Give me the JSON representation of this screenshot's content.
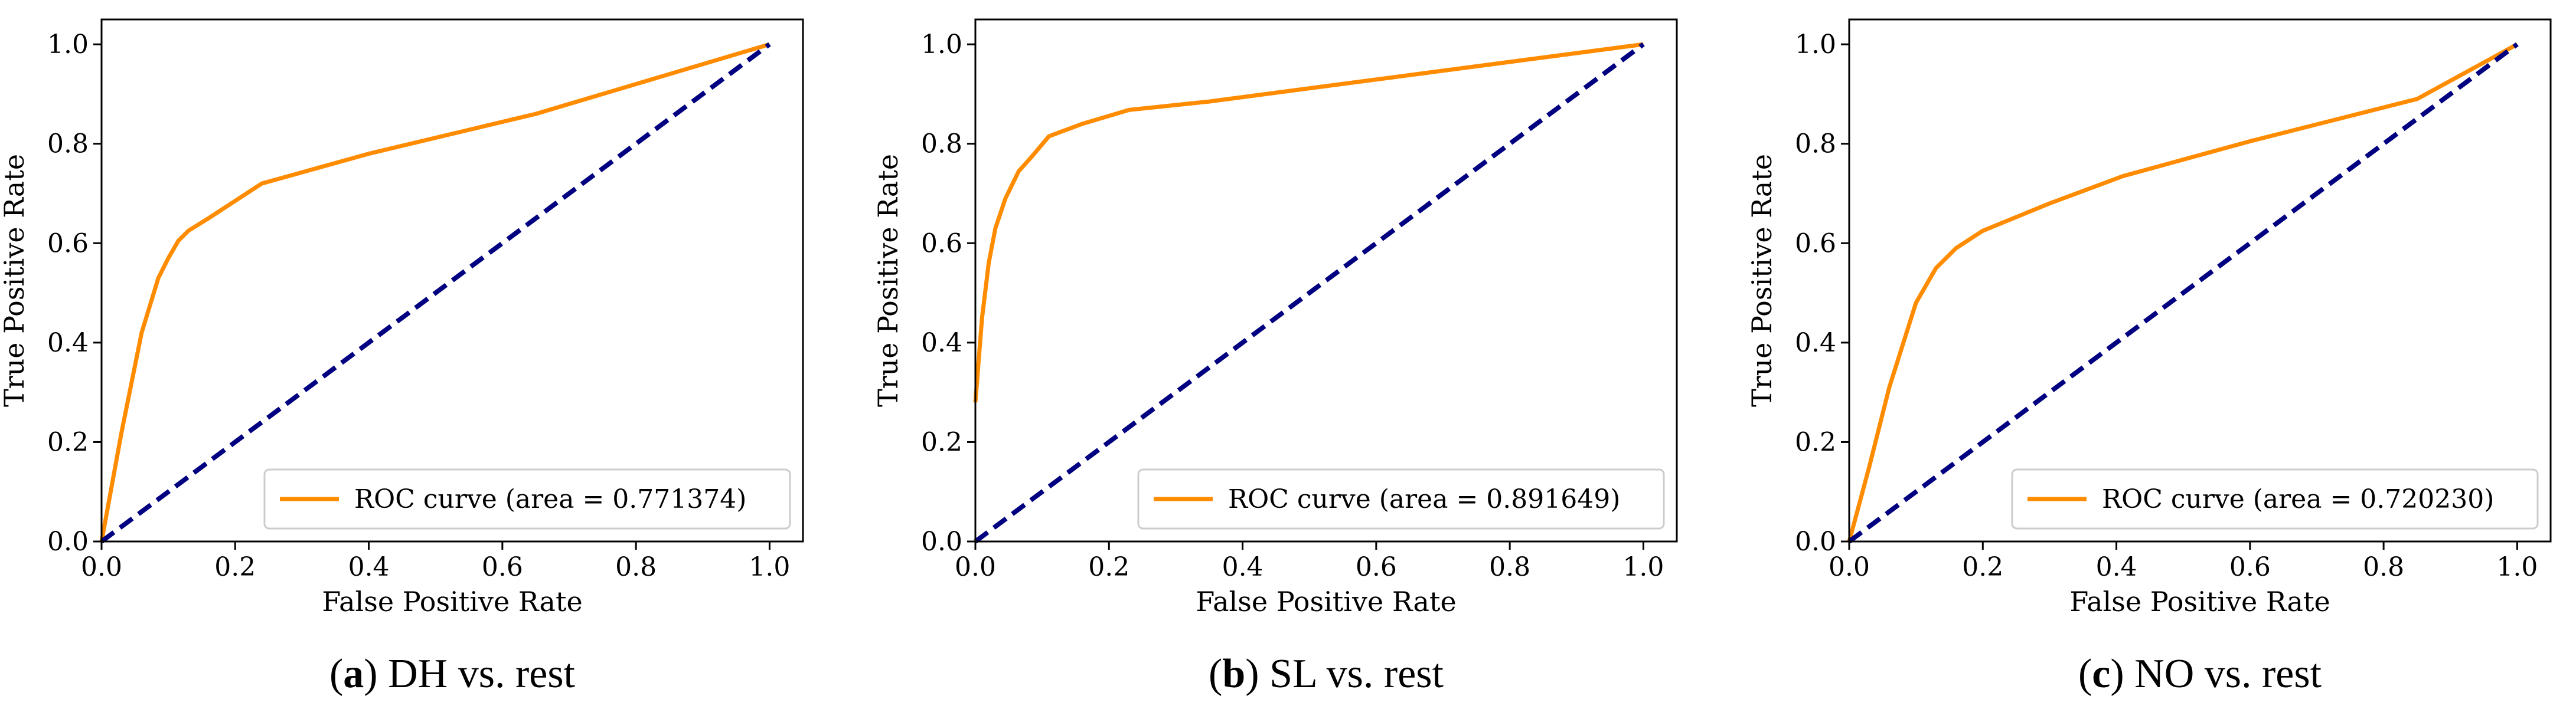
{
  "colors": {
    "roc": "#ff8c00",
    "diagonal": "#000080",
    "axes": "#000000",
    "legend_border": "#cccccc"
  },
  "chart_data": [
    {
      "type": "line",
      "caption_letter": "a",
      "caption_text": " DH vs. rest",
      "xlabel": "False Positive Rate",
      "ylabel": "True Positive Rate",
      "xlim": [
        0.0,
        1.05
      ],
      "ylim": [
        0.0,
        1.05
      ],
      "xticks": [
        "0.0",
        "0.2",
        "0.4",
        "0.6",
        "0.8",
        "1.0"
      ],
      "yticks": [
        "0.0",
        "0.2",
        "0.4",
        "0.6",
        "0.8",
        "1.0"
      ],
      "grid": false,
      "legend_position": "lower-right",
      "series": [
        {
          "name": "ROC curve (area = 0.771374)",
          "style": "solid",
          "x": [
            0.0,
            0.03,
            0.06,
            0.085,
            0.1,
            0.115,
            0.13,
            0.16,
            0.2,
            0.24,
            0.4,
            0.65,
            1.0
          ],
          "y": [
            0.0,
            0.22,
            0.42,
            0.53,
            0.57,
            0.605,
            0.625,
            0.65,
            0.685,
            0.72,
            0.78,
            0.86,
            1.0
          ]
        },
        {
          "name": "",
          "style": "dashed",
          "x": [
            0.0,
            1.0
          ],
          "y": [
            0.0,
            1.0
          ]
        }
      ]
    },
    {
      "type": "line",
      "caption_letter": "b",
      "caption_text": " SL vs. rest",
      "xlabel": "False Positive Rate",
      "ylabel": "True Positive Rate",
      "xlim": [
        0.0,
        1.05
      ],
      "ylim": [
        0.0,
        1.05
      ],
      "xticks": [
        "0.0",
        "0.2",
        "0.4",
        "0.6",
        "0.8",
        "1.0"
      ],
      "yticks": [
        "0.0",
        "0.2",
        "0.4",
        "0.6",
        "0.8",
        "1.0"
      ],
      "grid": false,
      "legend_position": "lower-right",
      "series": [
        {
          "name": "ROC curve (area = 0.891649)",
          "style": "solid",
          "x": [
            0.0,
            0.01,
            0.02,
            0.03,
            0.045,
            0.065,
            0.085,
            0.11,
            0.16,
            0.23,
            0.35,
            1.0
          ],
          "y": [
            0.28,
            0.45,
            0.56,
            0.63,
            0.69,
            0.745,
            0.775,
            0.815,
            0.84,
            0.868,
            0.885,
            1.0
          ]
        },
        {
          "name": "",
          "style": "dashed",
          "x": [
            0.0,
            1.0
          ],
          "y": [
            0.0,
            1.0
          ]
        }
      ]
    },
    {
      "type": "line",
      "caption_letter": "c",
      "caption_text": " NO vs. rest",
      "xlabel": "False Positive Rate",
      "ylabel": "True Positive Rate",
      "xlim": [
        0.0,
        1.05
      ],
      "ylim": [
        0.0,
        1.05
      ],
      "xticks": [
        "0.0",
        "0.2",
        "0.4",
        "0.6",
        "0.8",
        "1.0"
      ],
      "yticks": [
        "0.0",
        "0.2",
        "0.4",
        "0.6",
        "0.8",
        "1.0"
      ],
      "grid": false,
      "legend_position": "lower-right",
      "series": [
        {
          "name": "ROC curve (area = 0.720230)",
          "style": "solid",
          "x": [
            0.0,
            0.03,
            0.06,
            0.1,
            0.13,
            0.16,
            0.2,
            0.3,
            0.41,
            0.6,
            0.85,
            1.0
          ],
          "y": [
            0.0,
            0.15,
            0.31,
            0.48,
            0.55,
            0.59,
            0.625,
            0.68,
            0.735,
            0.805,
            0.89,
            1.0
          ]
        },
        {
          "name": "",
          "style": "dashed",
          "x": [
            0.0,
            1.0
          ],
          "y": [
            0.0,
            1.0
          ]
        }
      ]
    }
  ]
}
